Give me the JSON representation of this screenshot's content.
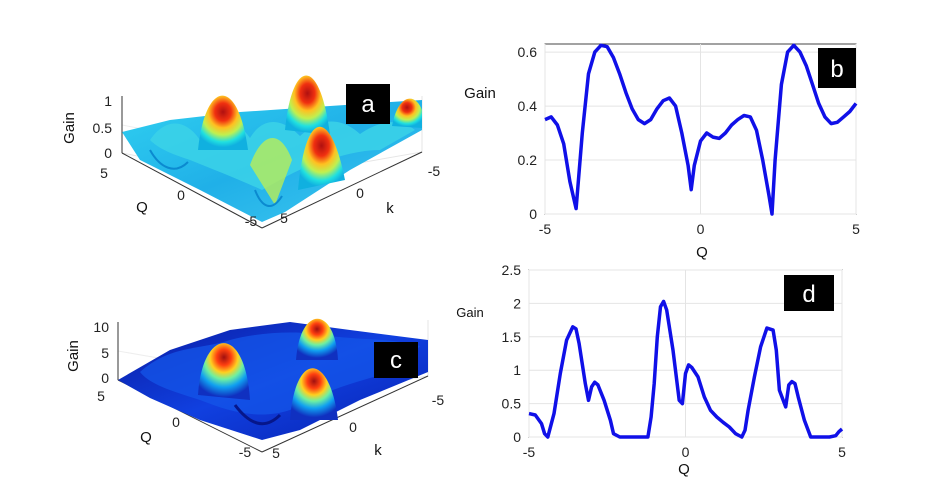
{
  "chart_data": [
    {
      "panel": "a",
      "type": "surface3d",
      "zlabel": "Gain",
      "xlabel": "Q",
      "ylabel": "k",
      "zticks": [
        "0",
        "0.5",
        "1"
      ],
      "qticks": [
        "5",
        "0",
        "-5"
      ],
      "kticks": [
        "5",
        "0",
        "-5"
      ],
      "zlim": [
        0,
        1.2
      ],
      "peaks": [
        {
          "q": -3,
          "k": 1.5,
          "gain": 1.1
        },
        {
          "q": 0,
          "k": -2,
          "gain": 1.1
        },
        {
          "q": 3,
          "k": -4,
          "gain": 0.8
        },
        {
          "q": 1.5,
          "k": 3.5,
          "gain": 0.8
        }
      ]
    },
    {
      "panel": "b",
      "type": "line",
      "xlabel": "Q",
      "ylabel": "Gain",
      "xlim": [
        -5,
        5
      ],
      "ylim": [
        0,
        0.63
      ],
      "xticks": [
        "-5",
        "0",
        "5"
      ],
      "yticks": [
        "0",
        "0.2",
        "0.4",
        "0.6"
      ],
      "x": [
        -5,
        -4.8,
        -4.6,
        -4.4,
        -4.2,
        -4.0,
        -3.8,
        -3.6,
        -3.4,
        -3.2,
        -3.0,
        -2.8,
        -2.6,
        -2.4,
        -2.2,
        -2.0,
        -1.8,
        -1.6,
        -1.4,
        -1.2,
        -1.0,
        -0.8,
        -0.6,
        -0.4,
        -0.3,
        -0.2,
        0.0,
        0.2,
        0.4,
        0.6,
        0.8,
        1.0,
        1.2,
        1.4,
        1.6,
        1.8,
        2.0,
        2.2,
        2.3,
        2.4,
        2.6,
        2.8,
        3.0,
        3.2,
        3.4,
        3.6,
        3.8,
        4.0,
        4.2,
        4.4,
        4.6,
        4.8,
        5.0
      ],
      "y": [
        0.35,
        0.36,
        0.33,
        0.26,
        0.12,
        0.02,
        0.3,
        0.52,
        0.6,
        0.625,
        0.62,
        0.58,
        0.52,
        0.45,
        0.39,
        0.35,
        0.335,
        0.35,
        0.39,
        0.42,
        0.43,
        0.4,
        0.3,
        0.18,
        0.09,
        0.18,
        0.27,
        0.3,
        0.285,
        0.28,
        0.3,
        0.33,
        0.35,
        0.365,
        0.36,
        0.31,
        0.2,
        0.07,
        0.0,
        0.2,
        0.48,
        0.6,
        0.625,
        0.6,
        0.55,
        0.48,
        0.41,
        0.36,
        0.335,
        0.34,
        0.36,
        0.38,
        0.41
      ]
    },
    {
      "panel": "c",
      "type": "surface3d",
      "zlabel": "Gain",
      "xlabel": "Q",
      "ylabel": "k",
      "zticks": [
        "0",
        "5",
        "10"
      ],
      "qticks": [
        "5",
        "0",
        "-5"
      ],
      "kticks": [
        "5",
        "0",
        "-5"
      ],
      "zlim": [
        0,
        11
      ],
      "peaks": [
        {
          "q": 0,
          "k": 0.5,
          "gain": 10
        },
        {
          "q": -2,
          "k": -3.5,
          "gain": 9
        },
        {
          "q": 2,
          "k": 2,
          "gain": 5
        }
      ]
    },
    {
      "panel": "d",
      "type": "line",
      "xlabel": "Q",
      "ylabel": "Gain",
      "xlim": [
        -5,
        5
      ],
      "ylim": [
        0,
        2.5
      ],
      "xticks": [
        "-5",
        "0",
        "5"
      ],
      "yticks": [
        "0",
        "0.5",
        "1",
        "1.5",
        "2",
        "2.5"
      ],
      "x": [
        -5,
        -4.8,
        -4.6,
        -4.5,
        -4.4,
        -4.2,
        -4.0,
        -3.8,
        -3.6,
        -3.5,
        -3.4,
        -3.2,
        -3.1,
        -3.0,
        -2.9,
        -2.8,
        -2.6,
        -2.4,
        -2.3,
        -2.1,
        -1.9,
        -1.7,
        -1.5,
        -1.3,
        -1.2,
        -1.1,
        -1.0,
        -0.9,
        -0.8,
        -0.7,
        -0.6,
        -0.4,
        -0.2,
        -0.1,
        0.0,
        0.1,
        0.2,
        0.4,
        0.6,
        0.8,
        1.0,
        1.2,
        1.4,
        1.6,
        1.8,
        1.9,
        2.0,
        2.2,
        2.4,
        2.6,
        2.8,
        2.9,
        3.0,
        3.2,
        3.3,
        3.4,
        3.5,
        3.6,
        3.8,
        4.0,
        4.2,
        4.4,
        4.6,
        4.8,
        4.9,
        5.0
      ],
      "y": [
        0.35,
        0.33,
        0.2,
        0.05,
        0.0,
        0.35,
        0.95,
        1.45,
        1.65,
        1.62,
        1.4,
        0.8,
        0.55,
        0.75,
        0.82,
        0.78,
        0.55,
        0.25,
        0.05,
        0.0,
        0.0,
        0.0,
        0.0,
        0.0,
        0.0,
        0.3,
        0.8,
        1.5,
        1.95,
        2.03,
        1.9,
        1.3,
        0.55,
        0.5,
        0.95,
        1.08,
        1.04,
        0.9,
        0.6,
        0.4,
        0.3,
        0.22,
        0.15,
        0.05,
        0.0,
        0.1,
        0.4,
        0.9,
        1.35,
        1.63,
        1.6,
        1.3,
        0.7,
        0.45,
        0.78,
        0.83,
        0.8,
        0.6,
        0.25,
        0.0,
        0.0,
        0.0,
        0.0,
        0.02,
        0.08,
        0.12
      ]
    }
  ]
}
